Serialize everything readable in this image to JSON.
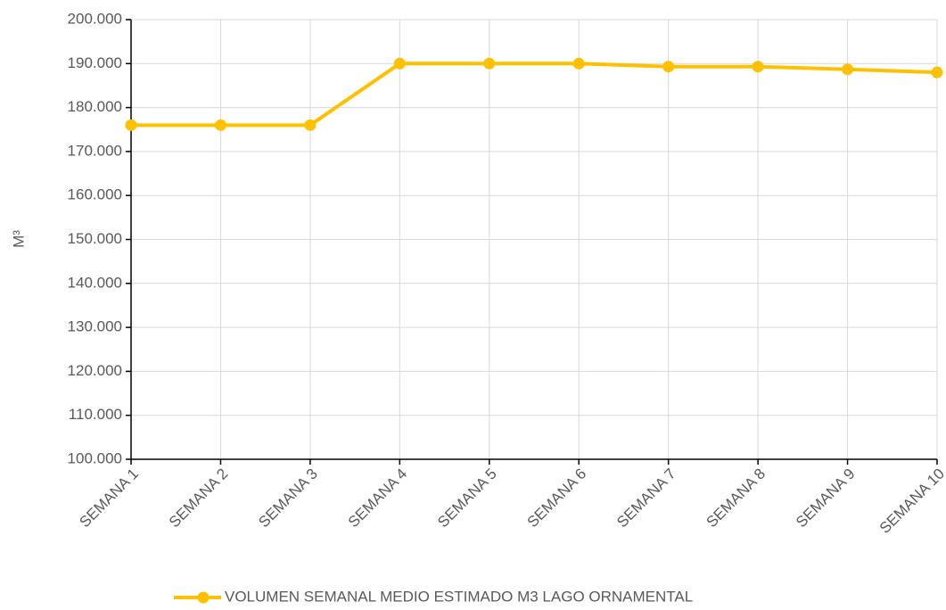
{
  "chart_data": {
    "type": "line",
    "y_label": "M³",
    "categories": [
      "SEMANA 1",
      "SEMANA 2",
      "SEMANA 3",
      "SEMANA 4",
      "SEMANA 5",
      "SEMANA 6",
      "SEMANA 7",
      "SEMANA 8",
      "SEMANA 9",
      "SEMANA 10"
    ],
    "series": [
      {
        "name": "VOLUMEN SEMANAL MEDIO ESTIMADO M3 LAGO ORNAMENTAL",
        "color": "#ffc000",
        "values": [
          176000,
          176000,
          176000,
          190000,
          190000,
          190000,
          189300,
          189300,
          188700,
          188000
        ]
      }
    ],
    "ylim": [
      100000,
      200000
    ],
    "yticks": [
      {
        "value": 100000,
        "label": "100.000"
      },
      {
        "value": 110000,
        "label": "110.000"
      },
      {
        "value": 120000,
        "label": "120.000"
      },
      {
        "value": 130000,
        "label": "130.000"
      },
      {
        "value": 140000,
        "label": "140.000"
      },
      {
        "value": 150000,
        "label": "150.000"
      },
      {
        "value": 160000,
        "label": "160.000"
      },
      {
        "value": 170000,
        "label": "170.000"
      },
      {
        "value": 180000,
        "label": "180.000"
      },
      {
        "value": 190000,
        "label": "190.000"
      },
      {
        "value": 200000,
        "label": "200.000"
      }
    ],
    "grid": true,
    "legend": "bottom"
  }
}
